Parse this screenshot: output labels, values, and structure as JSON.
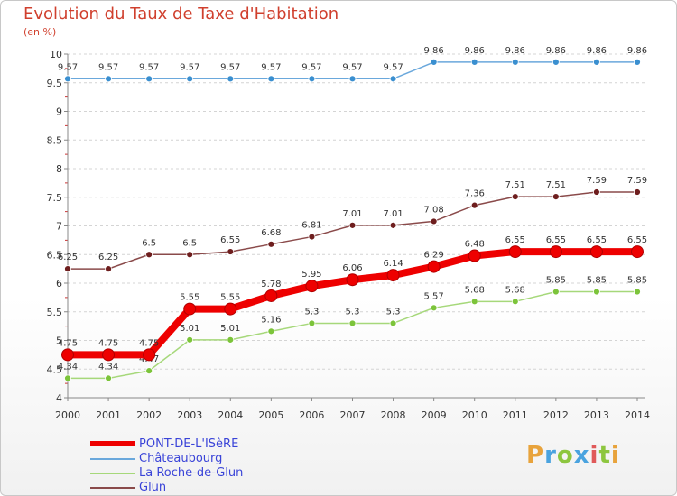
{
  "title": "Evolution du Taux de Taxe d'Habitation",
  "unit_label": "(en %)",
  "logo": {
    "text": "Proxiti",
    "colors": [
      "#e8a33c",
      "#4aa3df",
      "#8dc63f",
      "#4aa3df",
      "#e05a5a",
      "#8dc63f",
      "#e8a33c"
    ]
  },
  "chart_data": {
    "type": "line",
    "x": [
      "2000",
      "2001",
      "2002",
      "2003",
      "2004",
      "2005",
      "2006",
      "2007",
      "2008",
      "2009",
      "2010",
      "2011",
      "2012",
      "2013",
      "2014"
    ],
    "ylim": [
      4,
      10
    ],
    "yticks": [
      4,
      4.5,
      5,
      5.5,
      6,
      6.5,
      7,
      7.5,
      8,
      8.5,
      9,
      9.5,
      10
    ],
    "ytick_labels": [
      "4",
      "4.5",
      "5",
      "5.5",
      "6",
      "6.5",
      "7",
      "7.5",
      "8",
      "8.5",
      "9",
      "9.5",
      "10"
    ],
    "grid": "horizontal, dashed",
    "legend_position": "bottom-left",
    "series": [
      {
        "name": "PONT-DE-L'ISèRE",
        "color": "#ee0000",
        "line_color": "#ee0000",
        "values": [
          4.75,
          4.75,
          4.75,
          5.55,
          5.55,
          5.78,
          5.95,
          6.06,
          6.14,
          6.29,
          6.48,
          6.55,
          6.55,
          6.55,
          6.55
        ],
        "labels": [
          "4.75",
          "4.75",
          "4.75",
          "5.55",
          "5.55",
          "5.78",
          "5.95",
          "6.06",
          "6.14",
          "6.29",
          "6.48",
          "6.55",
          "6.55",
          "6.55",
          "6.55"
        ]
      },
      {
        "name": "Châteaubourg",
        "color": "#3a8fd0",
        "line_color": "#6aa8dc",
        "values": [
          9.57,
          9.57,
          9.57,
          9.57,
          9.57,
          9.57,
          9.57,
          9.57,
          9.57,
          9.86,
          9.86,
          9.86,
          9.86,
          9.86,
          9.86
        ],
        "labels": [
          "9.57",
          "9.57",
          "9.57",
          "9.57",
          "9.57",
          "9.57",
          "9.57",
          "9.57",
          "9.57",
          "9.86",
          "9.86",
          "9.86",
          "9.86",
          "9.86",
          "9.86"
        ]
      },
      {
        "name": "La Roche-de-Glun",
        "color": "#7cc43a",
        "line_color": "#a6d87a",
        "values": [
          4.34,
          4.34,
          4.47,
          5.01,
          5.01,
          5.16,
          5.3,
          5.3,
          5.3,
          5.57,
          5.68,
          5.68,
          5.85,
          5.85,
          5.85
        ],
        "labels": [
          "4.34",
          "4.34",
          "4.47",
          "5.01",
          "5.01",
          "5.16",
          "5.3",
          "5.3",
          "5.3",
          "5.57",
          "5.68",
          "5.68",
          "5.85",
          "5.85",
          "5.85"
        ]
      },
      {
        "name": "Glun",
        "color": "#6e1e1e",
        "line_color": "#8a4a4a",
        "values": [
          6.25,
          6.25,
          6.5,
          6.5,
          6.55,
          6.68,
          6.81,
          7.01,
          7.01,
          7.08,
          7.36,
          7.51,
          7.51,
          7.59,
          7.59
        ],
        "labels": [
          "6.25",
          "6.25",
          "6.5",
          "6.5",
          "6.55",
          "6.68",
          "6.81",
          "7.01",
          "7.01",
          "7.08",
          "7.36",
          "7.51",
          "7.51",
          "7.59",
          "7.59"
        ]
      }
    ]
  }
}
